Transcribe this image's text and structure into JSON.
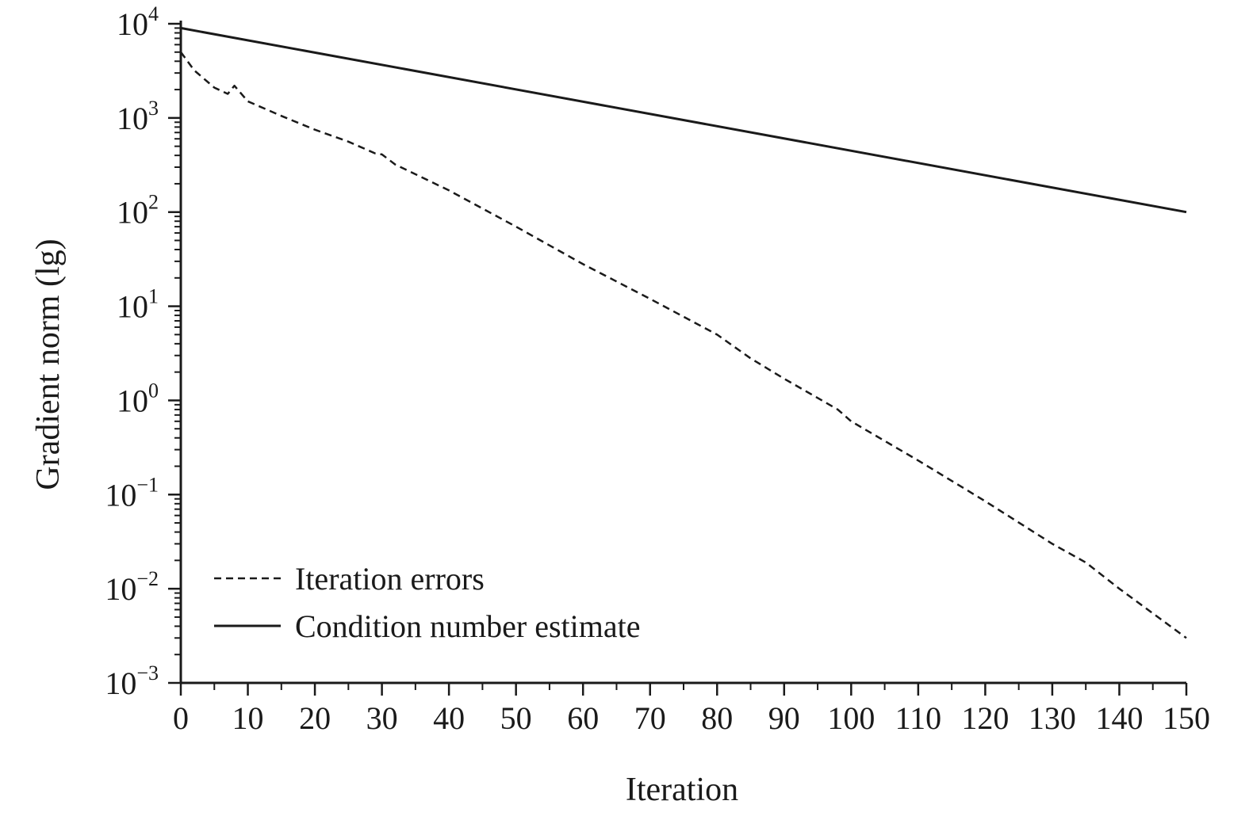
{
  "chart_data": {
    "type": "line",
    "title": "",
    "xlabel": "Iteration",
    "ylabel": "Gradient norm (lg)",
    "xlim": [
      0,
      150
    ],
    "ylim": [
      0.001,
      10000
    ],
    "yscale": "log",
    "grid": false,
    "legend_position": "bottom-left",
    "x_ticks": [
      0,
      10,
      20,
      30,
      40,
      50,
      60,
      70,
      80,
      90,
      100,
      110,
      120,
      130,
      140,
      150
    ],
    "x_tick_labels": [
      "0",
      "10",
      "20",
      "30",
      "40",
      "50",
      "60",
      "70",
      "80",
      "90",
      "100",
      "110",
      "120",
      "130",
      "140",
      "150"
    ],
    "y_ticks": [
      {
        "value": 10000,
        "base": "10",
        "exp": "4"
      },
      {
        "value": 1000,
        "base": "10",
        "exp": "3"
      },
      {
        "value": 100,
        "base": "10",
        "exp": "2"
      },
      {
        "value": 10,
        "base": "10",
        "exp": "1"
      },
      {
        "value": 1,
        "base": "10",
        "exp": "0"
      },
      {
        "value": 0.1,
        "base": "10",
        "exp": "−1"
      },
      {
        "value": 0.01,
        "base": "10",
        "exp": "−2"
      },
      {
        "value": 0.001,
        "base": "10",
        "exp": "−3"
      }
    ],
    "series": [
      {
        "name": "Iteration errors",
        "style": "dashed",
        "color": "#1a1a1a",
        "x": [
          0,
          2,
          5,
          7,
          8,
          10,
          15,
          20,
          25,
          29,
          30,
          32,
          40,
          50,
          60,
          70,
          80,
          85,
          90,
          98,
          100,
          110,
          120,
          130,
          135,
          140,
          150
        ],
        "y": [
          5000,
          3200,
          2100,
          1800,
          2200,
          1500,
          1050,
          750,
          560,
          420,
          410,
          320,
          170,
          70,
          28,
          12,
          5,
          2.8,
          1.7,
          0.8,
          0.6,
          0.23,
          0.085,
          0.03,
          0.019,
          0.01,
          0.003
        ]
      },
      {
        "name": "Condition number estimate",
        "style": "solid",
        "color": "#1a1a1a",
        "x": [
          0,
          150
        ],
        "y": [
          9000,
          100
        ]
      }
    ]
  }
}
